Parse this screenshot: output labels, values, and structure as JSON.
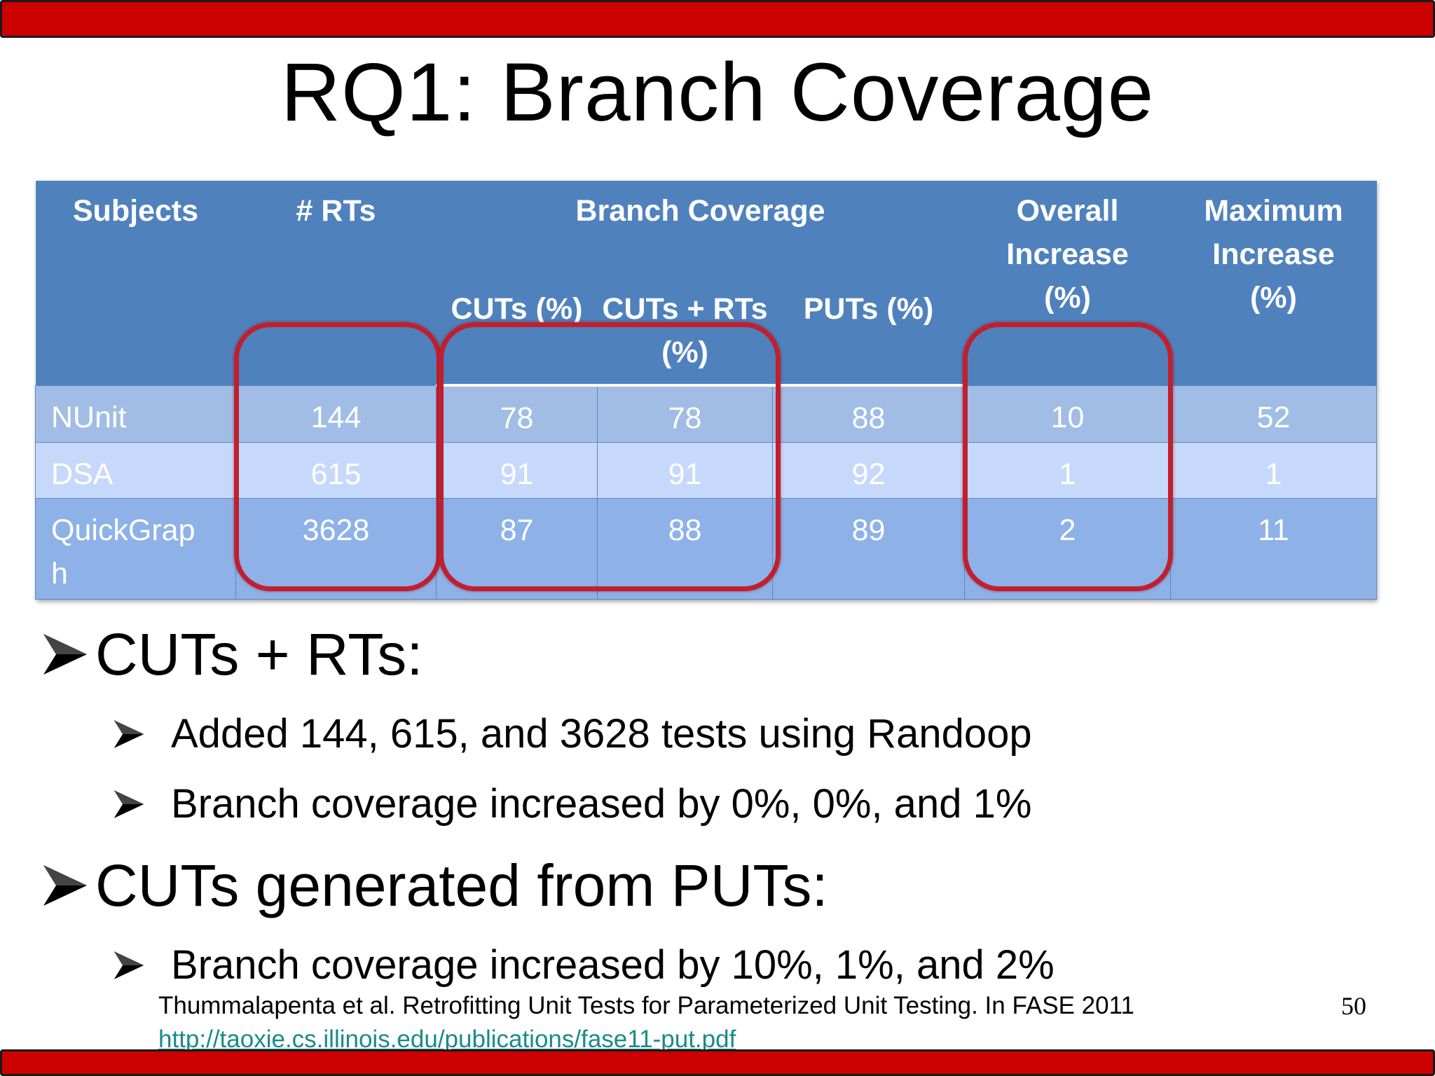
{
  "slide": {
    "title": "RQ1: Branch Coverage",
    "page_number": "50"
  },
  "table": {
    "headers": {
      "subjects": "Subjects",
      "rts": "# RTs",
      "branch_coverage": "Branch Coverage",
      "cuts": "CUTs (%)",
      "cuts_rts": "CUTs + RTs (%)",
      "puts": "PUTs (%)",
      "overall_1": "Overall",
      "overall_2": "Increase",
      "overall_3": "(%)",
      "max_1": "Maximum",
      "max_2": "Increase",
      "max_3": "(%)"
    },
    "rows": [
      {
        "subject": "NUnit",
        "rts": "144",
        "cuts": "78",
        "cuts_rts": "78",
        "puts": "88",
        "overall": "10",
        "max": "52"
      },
      {
        "subject": "DSA",
        "rts": "615",
        "cuts": "91",
        "cuts_rts": "91",
        "puts": "92",
        "overall": "1",
        "max": "1"
      },
      {
        "subject_1": "QuickGrap",
        "subject_2": "h",
        "rts": "3628",
        "cuts": "87",
        "cuts_rts": "88",
        "puts": "89",
        "overall": "2",
        "max": "11"
      }
    ]
  },
  "bullets": {
    "b1": "CUTs + RTs:",
    "b1_sub1": "Added 144, 615, and 3628 tests using Randoop",
    "b1_sub2": "Branch coverage increased by 0%, 0%, and 1%",
    "b2": "CUTs generated from PUTs:",
    "b2_sub1": "Branch coverage increased by 10%, 1%, and 2%"
  },
  "footer": {
    "citation": "Thummalapenta et al. Retrofitting Unit Tests for Parameterized Unit Testing. In FASE 2011",
    "link": "http://taoxie.cs.illinois.edu/publications/fase11-put.pdf"
  },
  "colors": {
    "bar_red": "#cc0000",
    "header_blue": "#4f81bd",
    "highlight_ring": "#c0202e",
    "link_teal": "#1a8a8a"
  }
}
